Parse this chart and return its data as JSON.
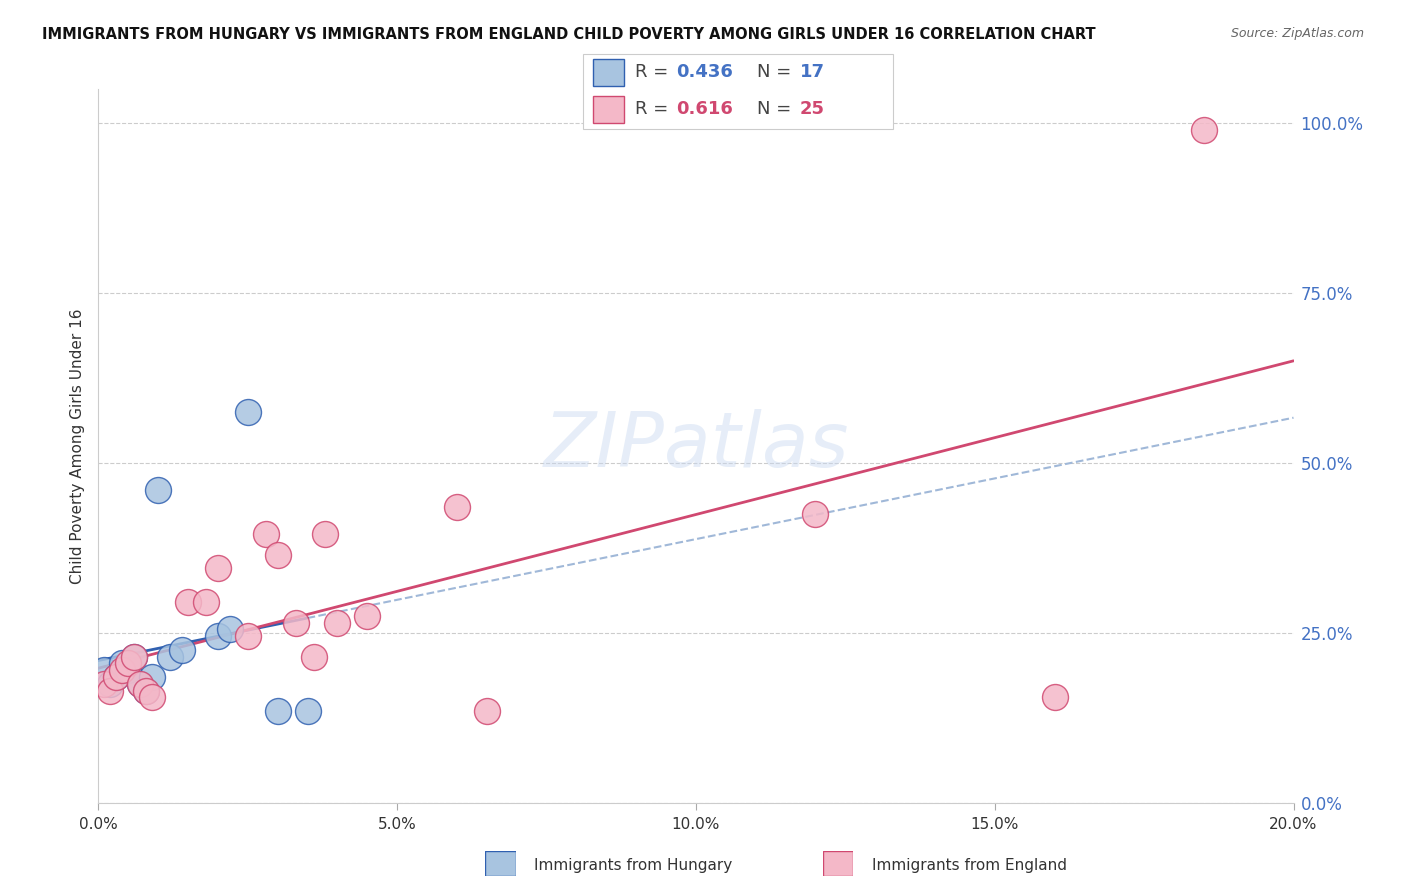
{
  "title": "IMMIGRANTS FROM HUNGARY VS IMMIGRANTS FROM ENGLAND CHILD POVERTY AMONG GIRLS UNDER 16 CORRELATION CHART",
  "source": "Source: ZipAtlas.com",
  "ylabel": "Child Poverty Among Girls Under 16",
  "xlim": [
    0.0,
    0.2
  ],
  "ylim": [
    0.0,
    1.05
  ],
  "watermark": "ZIPatlas",
  "hungary_R": "0.436",
  "hungary_N": "17",
  "england_R": "0.616",
  "england_N": "25",
  "hungary_color": "#a8c4e0",
  "england_color": "#f4b8c8",
  "hungary_line_color": "#3060b0",
  "england_line_color": "#d04870",
  "dashed_color": "#a0b8d8",
  "hungary_x": [
    0.001,
    0.002,
    0.003,
    0.004,
    0.005,
    0.006,
    0.007,
    0.008,
    0.009,
    0.01,
    0.012,
    0.014,
    0.02,
    0.022,
    0.025,
    0.03,
    0.035
  ],
  "hungary_y": [
    0.195,
    0.175,
    0.185,
    0.205,
    0.195,
    0.215,
    0.175,
    0.165,
    0.185,
    0.46,
    0.215,
    0.225,
    0.245,
    0.255,
    0.575,
    0.135,
    0.135
  ],
  "england_x": [
    0.001,
    0.002,
    0.003,
    0.004,
    0.005,
    0.006,
    0.007,
    0.008,
    0.009,
    0.015,
    0.018,
    0.02,
    0.025,
    0.028,
    0.03,
    0.033,
    0.036,
    0.038,
    0.04,
    0.045,
    0.06,
    0.065,
    0.12,
    0.16,
    0.185
  ],
  "england_y": [
    0.175,
    0.165,
    0.185,
    0.195,
    0.205,
    0.215,
    0.175,
    0.165,
    0.155,
    0.295,
    0.295,
    0.345,
    0.245,
    0.395,
    0.365,
    0.265,
    0.215,
    0.395,
    0.265,
    0.275,
    0.435,
    0.135,
    0.425,
    0.155,
    0.99
  ],
  "background_color": "#ffffff",
  "grid_color": "#cccccc",
  "ytick_labels": [
    "0.0%",
    "25.0%",
    "50.0%",
    "75.0%",
    "100.0%"
  ],
  "ytick_values": [
    0.0,
    0.25,
    0.5,
    0.75,
    1.0
  ],
  "xtick_labels": [
    "0.0%",
    "5.0%",
    "10.0%",
    "15.0%",
    "20.0%"
  ],
  "xtick_values": [
    0.0,
    0.05,
    0.1,
    0.15,
    0.2
  ]
}
